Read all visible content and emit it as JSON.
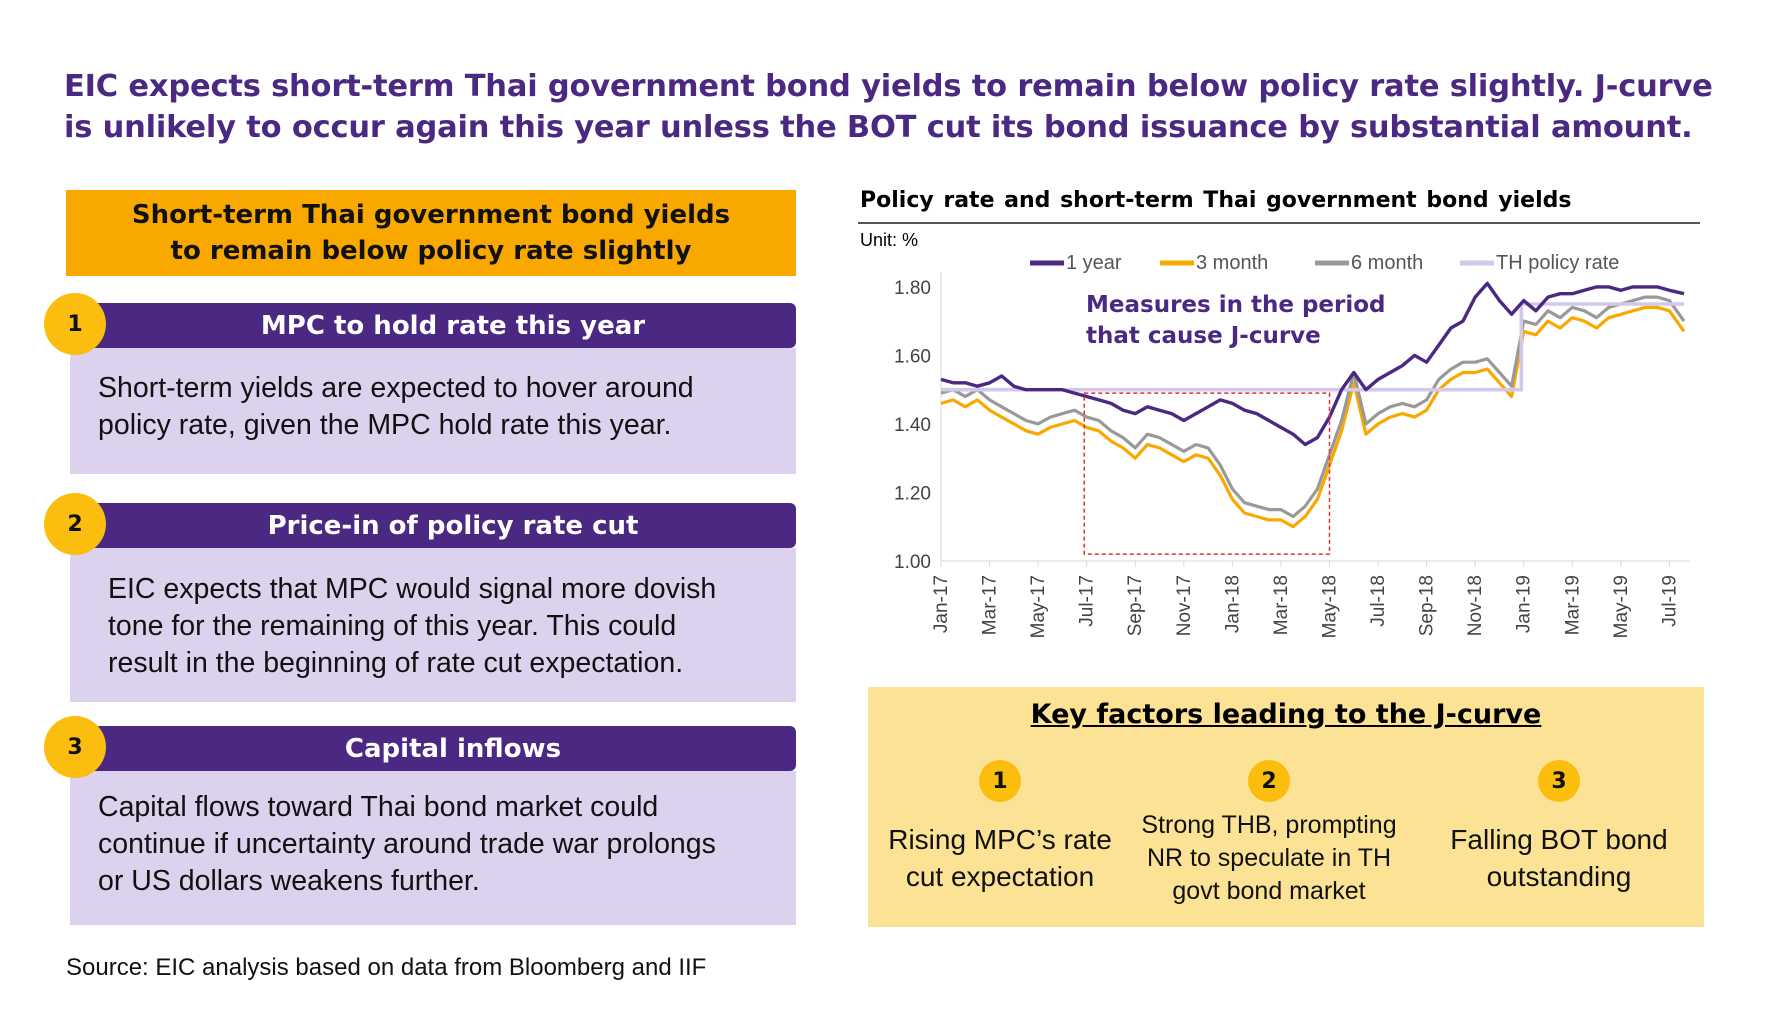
{
  "headline": {
    "line1": "EIC expects short-term Thai government bond yields to remain below policy rate slightly. J-curve",
    "line2": "is unlikely to occur again this year unless the BOT cut its bond issuance by substantial amount."
  },
  "left_banner": {
    "line1": "Short-term Thai government bond yields",
    "line2": "to remain below policy rate slightly"
  },
  "sections": [
    {
      "number": "1",
      "title": "MPC to hold rate this year",
      "lines": [
        "Short-term yields are expected to hover around",
        "policy rate, given the MPC hold rate this year."
      ]
    },
    {
      "number": "2",
      "title": "Price-in of policy rate cut",
      "lines": [
        "EIC expects that MPC would signal more dovish",
        "tone for the remaining of this year. This could",
        "result in the beginning of rate cut expectation."
      ]
    },
    {
      "number": "3",
      "title": "Capital inflows",
      "lines": [
        "Capital flows toward Thai bond market could",
        "continue if uncertainty around trade war prolongs",
        "or US dollars weakens further."
      ]
    }
  ],
  "key_factors": {
    "title": "Key factors leading to the J-curve",
    "items": [
      {
        "number": "1",
        "lines": [
          "Rising MPC’s rate",
          "cut expectation"
        ]
      },
      {
        "number": "2",
        "lines": [
          "Strong THB, prompting",
          "NR to speculate in TH",
          "govt bond market"
        ]
      },
      {
        "number": "3",
        "lines": [
          "Falling BOT bond",
          "outstanding"
        ]
      }
    ]
  },
  "source": "Source: EIC analysis based on data from Bloomberg and IIF",
  "chart_data": {
    "type": "line",
    "title": "Policy rate and short-term Thai government bond yields",
    "unit": "Unit: %",
    "ylim": [
      1.0,
      1.82
    ],
    "yticks": [
      "1.00",
      "1.20",
      "1.40",
      "1.60",
      "1.80"
    ],
    "ytick_values": [
      1.0,
      1.2,
      1.4,
      1.6,
      1.8
    ],
    "xticks": [
      "Jan-17",
      "Mar-17",
      "May-17",
      "Jul-17",
      "Sep-17",
      "Nov-17",
      "Jan-18",
      "Mar-18",
      "May-18",
      "Jul-18",
      "Sep-18",
      "Nov-18",
      "Jan-19",
      "Mar-19",
      "May-19",
      "Jul-19"
    ],
    "xtick_values": [
      0,
      2,
      4,
      6,
      8,
      10,
      12,
      14,
      16,
      18,
      20,
      22,
      24,
      26,
      28,
      30
    ],
    "xlim": [
      0,
      30.6
    ],
    "grid": false,
    "legend_position": "top",
    "annotation": {
      "line1": "Measures in the period",
      "line2": "that cause J-curve",
      "box_x": [
        5.9,
        16.0
      ],
      "box_y": [
        1.02,
        1.49
      ]
    },
    "series": [
      {
        "name": "1 year",
        "color": "#4b2882",
        "x": [
          0,
          0.5,
          1,
          1.5,
          2,
          2.5,
          3,
          3.5,
          4,
          4.5,
          5,
          5.5,
          6,
          6.5,
          7,
          7.5,
          8,
          8.5,
          9,
          9.5,
          10,
          10.5,
          11,
          11.5,
          12,
          12.5,
          13,
          13.5,
          14,
          14.5,
          15,
          15.5,
          16,
          16.5,
          17,
          17.5,
          18,
          18.5,
          19,
          19.5,
          20,
          20.5,
          21,
          21.5,
          22,
          22.5,
          23,
          23.5,
          24,
          24.5,
          25,
          25.5,
          26,
          26.5,
          27,
          27.5,
          28,
          28.5,
          29,
          29.5,
          30,
          30.6
        ],
        "values": [
          1.53,
          1.52,
          1.52,
          1.51,
          1.52,
          1.54,
          1.51,
          1.5,
          1.5,
          1.5,
          1.5,
          1.49,
          1.48,
          1.47,
          1.46,
          1.44,
          1.43,
          1.45,
          1.44,
          1.43,
          1.41,
          1.43,
          1.45,
          1.47,
          1.46,
          1.44,
          1.43,
          1.41,
          1.39,
          1.37,
          1.34,
          1.36,
          1.42,
          1.5,
          1.55,
          1.5,
          1.53,
          1.55,
          1.57,
          1.6,
          1.58,
          1.63,
          1.68,
          1.7,
          1.77,
          1.81,
          1.76,
          1.72,
          1.76,
          1.73,
          1.77,
          1.78,
          1.78,
          1.79,
          1.8,
          1.8,
          1.79,
          1.8,
          1.8,
          1.8,
          1.79,
          1.78
        ]
      },
      {
        "name": "3 month",
        "color": "#f9a800",
        "x": [
          0,
          0.5,
          1,
          1.5,
          2,
          2.5,
          3,
          3.5,
          4,
          4.5,
          5,
          5.5,
          6,
          6.5,
          7,
          7.5,
          8,
          8.5,
          9,
          9.5,
          10,
          10.5,
          11,
          11.5,
          12,
          12.5,
          13,
          13.5,
          14,
          14.5,
          15,
          15.5,
          16,
          16.5,
          17,
          17.5,
          18,
          18.5,
          19,
          19.5,
          20,
          20.5,
          21,
          21.5,
          22,
          22.5,
          23,
          23.5,
          24,
          24.5,
          25,
          25.5,
          26,
          26.5,
          27,
          27.5,
          28,
          28.5,
          29,
          29.5,
          30,
          30.6
        ],
        "values": [
          1.46,
          1.47,
          1.45,
          1.47,
          1.44,
          1.42,
          1.4,
          1.38,
          1.37,
          1.39,
          1.4,
          1.41,
          1.39,
          1.38,
          1.35,
          1.33,
          1.3,
          1.34,
          1.33,
          1.31,
          1.29,
          1.31,
          1.3,
          1.25,
          1.18,
          1.14,
          1.13,
          1.12,
          1.12,
          1.1,
          1.13,
          1.18,
          1.28,
          1.38,
          1.52,
          1.37,
          1.4,
          1.42,
          1.43,
          1.42,
          1.44,
          1.5,
          1.53,
          1.55,
          1.55,
          1.56,
          1.52,
          1.48,
          1.67,
          1.66,
          1.7,
          1.68,
          1.71,
          1.7,
          1.68,
          1.71,
          1.72,
          1.73,
          1.74,
          1.74,
          1.73,
          1.67
        ]
      },
      {
        "name": "6 month",
        "color": "#999999",
        "x": [
          0,
          0.5,
          1,
          1.5,
          2,
          2.5,
          3,
          3.5,
          4,
          4.5,
          5,
          5.5,
          6,
          6.5,
          7,
          7.5,
          8,
          8.5,
          9,
          9.5,
          10,
          10.5,
          11,
          11.5,
          12,
          12.5,
          13,
          13.5,
          14,
          14.5,
          15,
          15.5,
          16,
          16.5,
          17,
          17.5,
          18,
          18.5,
          19,
          19.5,
          20,
          20.5,
          21,
          21.5,
          22,
          22.5,
          23,
          23.5,
          24,
          24.5,
          25,
          25.5,
          26,
          26.5,
          27,
          27.5,
          28,
          28.5,
          29,
          29.5,
          30,
          30.6
        ],
        "values": [
          1.49,
          1.5,
          1.48,
          1.5,
          1.47,
          1.45,
          1.43,
          1.41,
          1.4,
          1.42,
          1.43,
          1.44,
          1.42,
          1.41,
          1.38,
          1.36,
          1.33,
          1.37,
          1.36,
          1.34,
          1.32,
          1.34,
          1.33,
          1.28,
          1.21,
          1.17,
          1.16,
          1.15,
          1.15,
          1.13,
          1.16,
          1.21,
          1.31,
          1.41,
          1.55,
          1.4,
          1.43,
          1.45,
          1.46,
          1.45,
          1.47,
          1.53,
          1.56,
          1.58,
          1.58,
          1.59,
          1.55,
          1.51,
          1.7,
          1.69,
          1.73,
          1.71,
          1.74,
          1.73,
          1.71,
          1.74,
          1.75,
          1.76,
          1.77,
          1.77,
          1.76,
          1.7
        ]
      },
      {
        "name": "TH policy rate",
        "color": "#d3c8ea",
        "x": [
          0,
          23.9,
          23.9,
          30.6
        ],
        "values": [
          1.5,
          1.5,
          1.75,
          1.75
        ]
      }
    ]
  }
}
